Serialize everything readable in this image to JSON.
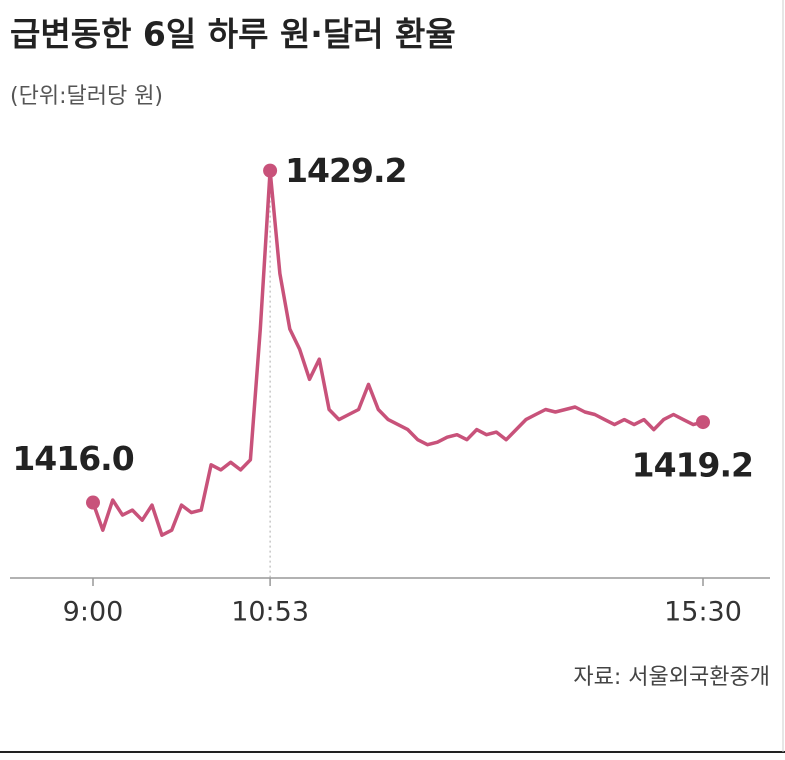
{
  "chart_data": {
    "type": "line",
    "title": "급변동한 6일 하루 원·달러 환율",
    "subtitle": "(단위:달러당 원)",
    "source": "자료: 서울외국환중개",
    "categories": [
      "9:00",
      null,
      null,
      null,
      null,
      null,
      null,
      null,
      null,
      null,
      null,
      null,
      null,
      null,
      null,
      null,
      null,
      null,
      "10:53",
      null,
      null,
      null,
      null,
      null,
      null,
      null,
      null,
      null,
      null,
      null,
      null,
      null,
      null,
      null,
      null,
      null,
      null,
      null,
      null,
      null,
      null,
      null,
      null,
      null,
      null,
      null,
      null,
      null,
      null,
      null,
      null,
      null,
      null,
      null,
      null,
      null,
      null,
      null,
      null,
      null,
      null,
      null,
      "15:30"
    ],
    "values": [
      1416.0,
      1414.9,
      1416.1,
      1415.5,
      1415.7,
      1415.3,
      1415.9,
      1414.7,
      1414.9,
      1415.9,
      1415.6,
      1415.7,
      1417.5,
      1417.3,
      1417.6,
      1417.3,
      1417.7,
      1422.9,
      1429.2,
      1425.1,
      1422.9,
      1422.1,
      1420.9,
      1421.7,
      1419.7,
      1419.3,
      1419.5,
      1419.7,
      1420.7,
      1419.7,
      1419.3,
      1419.1,
      1418.9,
      1418.5,
      1418.3,
      1418.4,
      1418.6,
      1418.7,
      1418.5,
      1418.9,
      1418.7,
      1418.8,
      1418.5,
      1418.9,
      1419.3,
      1419.5,
      1419.7,
      1419.6,
      1419.7,
      1419.8,
      1419.6,
      1419.5,
      1419.3,
      1419.1,
      1419.3,
      1419.1,
      1419.3,
      1418.9,
      1419.3,
      1419.5,
      1419.3,
      1419.1,
      1419.2
    ],
    "value_labels": [
      "1416.0",
      null,
      null,
      null,
      null,
      null,
      null,
      null,
      null,
      null,
      null,
      null,
      null,
      null,
      null,
      null,
      null,
      null,
      "1429.2",
      null,
      null,
      null,
      null,
      null,
      null,
      null,
      null,
      null,
      null,
      null,
      null,
      null,
      null,
      null,
      null,
      null,
      null,
      null,
      null,
      null,
      null,
      null,
      null,
      null,
      null,
      null,
      null,
      null,
      null,
      null,
      null,
      null,
      null,
      null,
      null,
      null,
      null,
      null,
      null,
      null,
      null,
      null,
      "1419.2"
    ],
    "color": "#c8527a",
    "ylim": [
      1413,
      1430
    ]
  }
}
